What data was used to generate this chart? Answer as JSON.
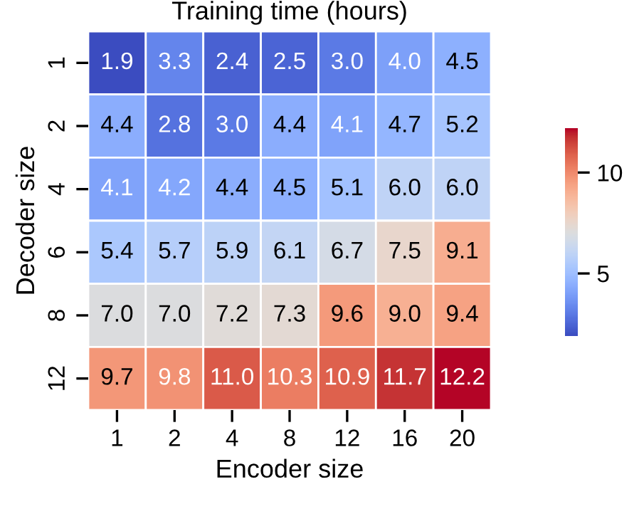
{
  "chart_data": {
    "type": "heatmap",
    "title": "Training time (hours)",
    "xlabel": "Encoder size",
    "ylabel": "Decoder size",
    "categories": [
      "1",
      "2",
      "4",
      "8",
      "12",
      "16",
      "20"
    ],
    "y_categories": [
      "1",
      "2",
      "4",
      "6",
      "8",
      "12"
    ],
    "cells": [
      [
        1.9,
        3.3,
        2.4,
        2.5,
        3.0,
        4.0,
        4.5
      ],
      [
        4.4,
        2.8,
        3.0,
        4.4,
        4.1,
        4.7,
        5.2
      ],
      [
        4.1,
        4.2,
        4.4,
        4.5,
        5.1,
        6.0,
        6.0
      ],
      [
        5.4,
        5.7,
        5.9,
        6.1,
        6.7,
        7.5,
        9.1
      ],
      [
        7.0,
        7.0,
        7.2,
        7.3,
        9.6,
        9.0,
        9.4
      ],
      [
        9.7,
        9.8,
        11.0,
        10.3,
        10.9,
        11.7,
        12.2
      ]
    ],
    "cell_labels": [
      [
        "1.9",
        "3.3",
        "2.4",
        "2.5",
        "3.0",
        "4.0",
        "4.5"
      ],
      [
        "4.4",
        "2.8",
        "3.0",
        "4.4",
        "4.1",
        "4.7",
        "5.2"
      ],
      [
        "4.1",
        "4.2",
        "4.4",
        "4.5",
        "5.1",
        "6.0",
        "6.0"
      ],
      [
        "5.4",
        "5.7",
        "5.9",
        "6.1",
        "6.7",
        "7.5",
        "9.1"
      ],
      [
        "7.0",
        "7.0",
        "7.2",
        "7.3",
        "9.6",
        "9.0",
        "9.4"
      ],
      [
        "9.7",
        "9.8",
        "11.0",
        "10.3",
        "10.9",
        "11.7",
        "12.2"
      ]
    ],
    "clim": [
      1.9,
      12.2
    ],
    "cticks": [
      5,
      10
    ],
    "data_labels": true
  }
}
